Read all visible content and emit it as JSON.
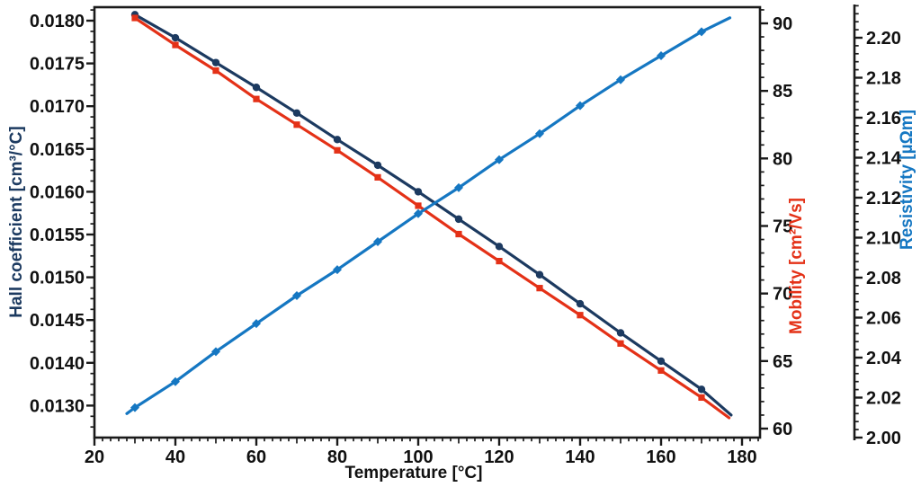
{
  "chart_data": {
    "type": "line",
    "grid": "off",
    "legend": "none",
    "x_axis": {
      "label": "Temperature [°C]",
      "color": "#111111",
      "tick_labels": [
        20,
        40,
        60,
        80,
        100,
        120,
        140,
        160,
        180
      ],
      "minor_step": 2,
      "range": [
        20,
        184
      ]
    },
    "y_axes": [
      {
        "id": "hall",
        "side": "left",
        "label": "Hall coefficient [cm³/°C]",
        "color": "#1c3a60",
        "tick_labels": [
          "0.0180",
          "0.0175",
          "0.0170",
          "0.0165",
          "0.0160",
          "0.0155",
          "0.0150",
          "0.0145",
          "0.0140",
          "0.0130"
        ]
      },
      {
        "id": "mobility",
        "side": "right",
        "label": "Mobility [cm²/Vs]",
        "color": "#e43117",
        "tick_labels": [
          90,
          85,
          80,
          75,
          70,
          65,
          60
        ],
        "minor_step": 1,
        "range": [
          59.3,
          91.2
        ]
      },
      {
        "id": "resistivity",
        "side": "far-right",
        "label": "Resistivity [µΩm]",
        "color": "#1577c2",
        "tick_labels": [
          "2.20",
          "2.18",
          "2.16",
          "2.14",
          "2.12",
          "2.10",
          "2.08",
          "2.06",
          "2.04",
          "2.02",
          "2.00"
        ],
        "minor_step": 0.004,
        "range": [
          2.0,
          2.217
        ]
      }
    ],
    "x_values": [
      30,
      40,
      50,
      60,
      70,
      80,
      90,
      100,
      110,
      120,
      130,
      140,
      150,
      160,
      170
    ],
    "series": [
      {
        "name": "Hall coefficient",
        "axis": "hall",
        "color": "#1c3a60",
        "marker": "circle",
        "values": [
          0.01807,
          0.0178,
          0.01751,
          0.01722,
          0.01692,
          0.01661,
          0.01631,
          0.016,
          0.01568,
          0.01536,
          0.01503,
          0.01469,
          0.01435,
          0.01402,
          0.01369
        ],
        "line_end": {
          "x": 177.3,
          "value": 0.01339
        }
      },
      {
        "name": "Mobility",
        "axis": "mobility",
        "color": "#e43117",
        "marker": "square",
        "values": [
          90.4,
          88.4,
          86.5,
          84.4,
          82.5,
          80.6,
          78.6,
          76.5,
          74.4,
          72.4,
          70.4,
          68.4,
          66.3,
          64.3,
          62.3
        ],
        "line_end": {
          "x": 176.8,
          "value": 60.8
        }
      },
      {
        "name": "Resistivity",
        "axis": "resistivity",
        "color": "#1577c2",
        "marker": "diamond",
        "values": [
          2.015,
          2.028,
          2.043,
          2.057,
          2.071,
          2.084,
          2.098,
          2.112,
          2.125,
          2.139,
          2.152,
          2.166,
          2.179,
          2.191,
          2.203
        ],
        "line_start": {
          "x": 28,
          "value": 2.012
        },
        "line_end": {
          "x": 177,
          "value": 2.21
        }
      }
    ]
  }
}
